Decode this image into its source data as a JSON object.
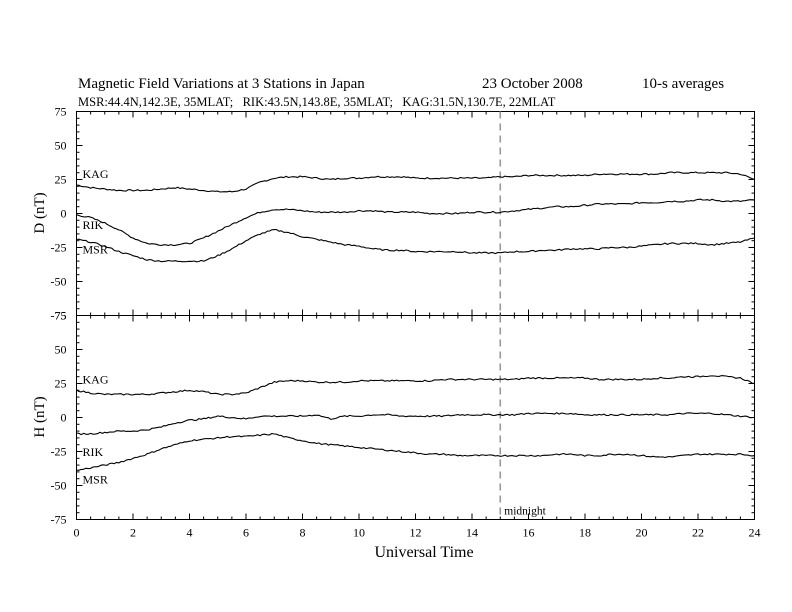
{
  "header": {
    "title": "Magnetic Field Variations at 3 Stations in Japan",
    "date": "23 October 2008",
    "averaging": "10-s averages",
    "stations_line": "MSR:44.4N,142.3E, 35MLAT;   RIK:43.5N,143.8E, 35MLAT;   KAG:31.5N,130.7E, 22MLAT"
  },
  "chart_data": [
    {
      "type": "line",
      "panel": "D",
      "ylabel": "D (nT)",
      "ylim": [
        -75,
        75
      ],
      "yticks": [
        -75,
        -50,
        -25,
        0,
        25,
        50,
        75
      ],
      "xlim": [
        0,
        24
      ],
      "marker_x": 15,
      "series": [
        {
          "name": "KAG",
          "x": [
            0,
            0.5,
            1,
            1.5,
            2,
            2.5,
            3,
            3.5,
            4,
            4.5,
            5,
            5.5,
            6,
            6.5,
            7,
            7.5,
            8,
            8.5,
            9,
            9.5,
            10,
            10.5,
            11,
            11.5,
            12,
            12.5,
            13,
            13.5,
            14,
            14.5,
            15,
            15.5,
            16,
            16.5,
            17,
            17.5,
            18,
            18.5,
            19,
            19.5,
            20,
            20.5,
            21,
            21.5,
            22,
            22.5,
            23,
            23.5,
            24
          ],
          "y": [
            21,
            19,
            18,
            17,
            17,
            17,
            18,
            19,
            18,
            17,
            16,
            16,
            18,
            23,
            26,
            27,
            27,
            26,
            25,
            26,
            26,
            27,
            27,
            27,
            26,
            26,
            26,
            26,
            26,
            26,
            27,
            27,
            28,
            28,
            28,
            28,
            28,
            29,
            29,
            29,
            29,
            29,
            30,
            30,
            30,
            30,
            30,
            29,
            25
          ]
        },
        {
          "name": "RIK",
          "x": [
            0,
            0.5,
            1,
            1.5,
            2,
            2.5,
            3,
            3.5,
            4,
            4.5,
            5,
            5.5,
            6,
            6.5,
            7,
            7.5,
            8,
            8.5,
            9,
            9.5,
            10,
            10.5,
            11,
            11.5,
            12,
            12.5,
            13,
            13.5,
            14,
            14.5,
            15,
            15.5,
            16,
            16.5,
            17,
            17.5,
            18,
            18.5,
            19,
            19.5,
            20,
            20.5,
            21,
            21.5,
            22,
            22.5,
            23,
            23.5,
            24
          ],
          "y": [
            -1,
            -3,
            -7,
            -12,
            -18,
            -22,
            -23,
            -23,
            -22,
            -18,
            -13,
            -8,
            -3,
            1,
            3,
            3,
            2,
            1,
            1,
            1,
            2,
            2,
            1,
            1,
            1,
            0,
            0,
            0,
            1,
            1,
            1,
            2,
            3,
            4,
            5,
            5,
            6,
            7,
            7,
            7,
            8,
            8,
            9,
            9,
            10,
            10,
            9,
            9,
            10
          ]
        },
        {
          "name": "MSR",
          "x": [
            0,
            0.5,
            1,
            1.5,
            2,
            2.5,
            3,
            3.5,
            4,
            4.5,
            5,
            5.5,
            6,
            6.5,
            7,
            7.5,
            8,
            8.5,
            9,
            9.5,
            10,
            10.5,
            11,
            11.5,
            12,
            12.5,
            13,
            13.5,
            14,
            14.5,
            15,
            15.5,
            16,
            16.5,
            17,
            17.5,
            18,
            18.5,
            19,
            19.5,
            20,
            20.5,
            21,
            21.5,
            22,
            22.5,
            23,
            23.5,
            24
          ],
          "y": [
            -19,
            -21,
            -24,
            -28,
            -31,
            -34,
            -35,
            -35,
            -35,
            -35,
            -31,
            -26,
            -20,
            -15,
            -12,
            -14,
            -17,
            -19,
            -21,
            -23,
            -24,
            -26,
            -27,
            -27,
            -28,
            -28,
            -28,
            -28,
            -29,
            -29,
            -29,
            -28,
            -28,
            -27,
            -27,
            -26,
            -26,
            -26,
            -25,
            -25,
            -24,
            -23,
            -22,
            -22,
            -22,
            -23,
            -22,
            -21,
            -18
          ]
        }
      ]
    },
    {
      "type": "line",
      "panel": "H",
      "ylabel": "H (nT)",
      "ylim": [
        -75,
        75
      ],
      "yticks": [
        -75,
        -50,
        -25,
        0,
        25,
        50,
        75
      ],
      "xlim": [
        0,
        24
      ],
      "xticks": [
        0,
        2,
        4,
        6,
        8,
        10,
        12,
        14,
        16,
        18,
        20,
        22,
        24
      ],
      "xlabel": "Universal Time",
      "marker_x": 15,
      "marker_label": "midnight",
      "series": [
        {
          "name": "KAG",
          "x": [
            0,
            0.5,
            1,
            1.5,
            2,
            2.5,
            3,
            3.5,
            4,
            4.5,
            5,
            5.5,
            6,
            6.5,
            7,
            7.5,
            8,
            8.5,
            9,
            9.5,
            10,
            10.5,
            11,
            11.5,
            12,
            12.5,
            13,
            13.5,
            14,
            14.5,
            15,
            15.5,
            16,
            16.5,
            17,
            17.5,
            18,
            18.5,
            19,
            19.5,
            20,
            20.5,
            21,
            21.5,
            22,
            22.5,
            23,
            23.5,
            24
          ],
          "y": [
            20,
            18,
            17,
            17,
            17,
            17,
            18,
            19,
            20,
            19,
            17,
            17,
            18,
            22,
            26,
            27,
            27,
            26,
            26,
            26,
            27,
            27,
            27,
            27,
            27,
            27,
            28,
            28,
            28,
            28,
            28,
            28,
            29,
            29,
            29,
            29,
            29,
            28,
            28,
            28,
            28,
            29,
            29,
            30,
            30,
            31,
            30,
            29,
            25
          ]
        },
        {
          "name": "RIK",
          "x": [
            0,
            0.5,
            1,
            1.5,
            2,
            2.5,
            3,
            3.5,
            4,
            4.5,
            5,
            5.5,
            6,
            6.5,
            7,
            7.5,
            8,
            8.5,
            9,
            9.5,
            10,
            10.5,
            11,
            11.5,
            12,
            12.5,
            13,
            13.5,
            14,
            14.5,
            15,
            15.5,
            16,
            16.5,
            17,
            17.5,
            18,
            18.5,
            19,
            19.5,
            20,
            20.5,
            21,
            21.5,
            22,
            22.5,
            23,
            23.5,
            24
          ],
          "y": [
            -12,
            -12,
            -11,
            -10,
            -10,
            -9,
            -7,
            -4,
            -2,
            -1,
            1,
            0,
            -1,
            1,
            1,
            1,
            1,
            2,
            -1,
            1,
            1,
            2,
            2,
            1,
            1,
            1,
            1,
            2,
            2,
            2,
            2,
            2,
            3,
            3,
            3,
            3,
            2,
            2,
            2,
            2,
            2,
            2,
            2,
            3,
            3,
            3,
            2,
            1,
            0
          ]
        },
        {
          "name": "MSR",
          "x": [
            0,
            0.5,
            1,
            1.5,
            2,
            2.5,
            3,
            3.5,
            4,
            4.5,
            5,
            5.5,
            6,
            6.5,
            7,
            7.5,
            8,
            8.5,
            9,
            9.5,
            10,
            10.5,
            11,
            11.5,
            12,
            12.5,
            13,
            13.5,
            14,
            14.5,
            15,
            15.5,
            16,
            16.5,
            17,
            17.5,
            18,
            18.5,
            19,
            19.5,
            20,
            20.5,
            21,
            21.5,
            22,
            22.5,
            23,
            23.5,
            24
          ],
          "y": [
            -39,
            -37,
            -35,
            -33,
            -30,
            -27,
            -23,
            -20,
            -17,
            -16,
            -15,
            -14,
            -14,
            -13,
            -12,
            -15,
            -17,
            -19,
            -20,
            -21,
            -22,
            -23,
            -24,
            -25,
            -26,
            -27,
            -27,
            -28,
            -28,
            -28,
            -28,
            -28,
            -28,
            -28,
            -27,
            -27,
            -28,
            -28,
            -27,
            -27,
            -28,
            -29,
            -29,
            -28,
            -27,
            -27,
            -27,
            -27,
            -28
          ]
        }
      ]
    }
  ]
}
